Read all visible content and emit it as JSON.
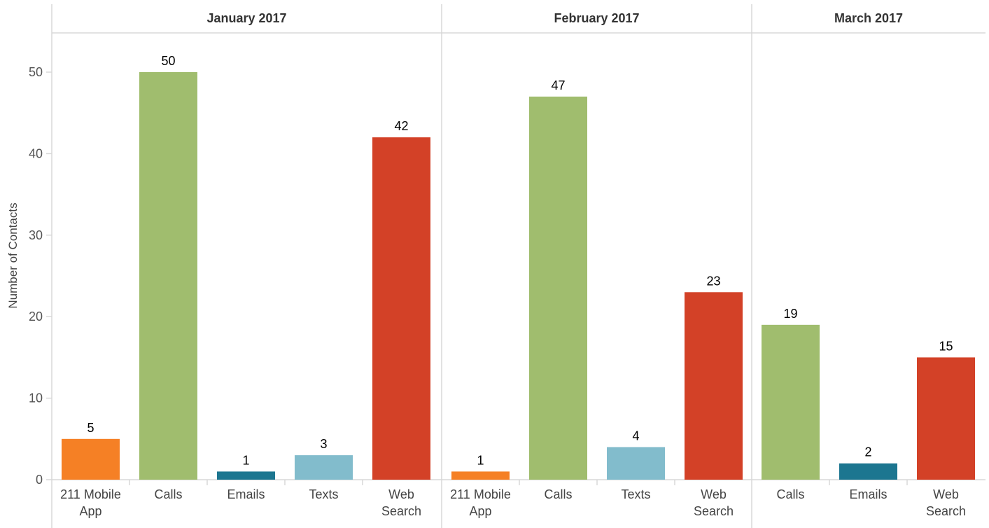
{
  "chart_data": {
    "type": "bar",
    "ylabel": "Number of Contacts",
    "ylim": [
      0,
      55
    ],
    "yticks": [
      0,
      10,
      20,
      30,
      40,
      50
    ],
    "grid": false,
    "colors": {
      "211 Mobile App": "#f58025",
      "Calls": "#a0bd6e",
      "Emails": "#1c7690",
      "Texts": "#82bccc",
      "Web Search": "#d34127"
    },
    "panels": [
      {
        "title": "January 2017",
        "categories": [
          "211 Mobile App",
          "Calls",
          "Emails",
          "Texts",
          "Web Search"
        ],
        "category_lines": [
          [
            "211 Mobile",
            "App"
          ],
          [
            "Calls"
          ],
          [
            "Emails"
          ],
          [
            "Texts"
          ],
          [
            "Web",
            "Search"
          ]
        ],
        "values": [
          5,
          50,
          1,
          3,
          42
        ]
      },
      {
        "title": "February 2017",
        "categories": [
          "211 Mobile App",
          "Calls",
          "Texts",
          "Web Search"
        ],
        "category_lines": [
          [
            "211 Mobile",
            "App"
          ],
          [
            "Calls"
          ],
          [
            "Texts"
          ],
          [
            "Web",
            "Search"
          ]
        ],
        "values": [
          1,
          47,
          4,
          23
        ]
      },
      {
        "title": "March 2017",
        "categories": [
          "Calls",
          "Emails",
          "Web Search"
        ],
        "category_lines": [
          [
            "Calls"
          ],
          [
            "Emails"
          ],
          [
            "Web",
            "Search"
          ]
        ],
        "values": [
          19,
          2,
          15
        ]
      }
    ]
  }
}
